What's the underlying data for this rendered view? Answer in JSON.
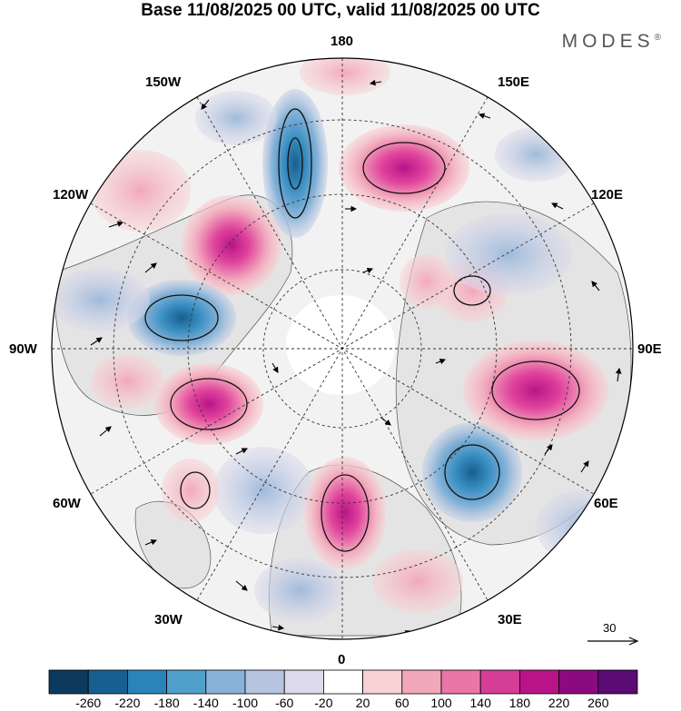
{
  "title": "Base 11/08/2025 00 UTC, valid 11/08/2025 00 UTC",
  "brand": "MODES",
  "brand_mark": "®",
  "longitude_labels": {
    "top": "180",
    "top_left": "150W",
    "top_right": "150E",
    "upper_left": "120W",
    "upper_right": "120E",
    "left": "90W",
    "right": "90E",
    "lower_left": "60W",
    "lower_right": "60E",
    "bottom_left": "30W",
    "bottom_right": "30E",
    "bottom": "0"
  },
  "reference_vector": {
    "label": "30",
    "icon": "arrow-right-icon"
  },
  "colorbar": {
    "ticks": [
      "-260",
      "-220",
      "-180",
      "-140",
      "-100",
      "-60",
      "-20",
      "20",
      "60",
      "100",
      "140",
      "180",
      "220",
      "260"
    ],
    "colors": [
      "#0d3a5c",
      "#175f8f",
      "#2a83b9",
      "#519fcb",
      "#88b3d8",
      "#b6c4df",
      "#dcdaeb",
      "#ffffff",
      "#f8d2d4",
      "#f2a8bb",
      "#ea75a8",
      "#d63d96",
      "#b81488",
      "#8b0a80",
      "#5a0b74"
    ]
  },
  "map": {
    "projection": "north-polar-stereographic",
    "land_color": "#e8e8e8",
    "ocean_color": "#f2f2f2",
    "positive_color": "#e0328f",
    "negative_color": "#2575a8"
  }
}
